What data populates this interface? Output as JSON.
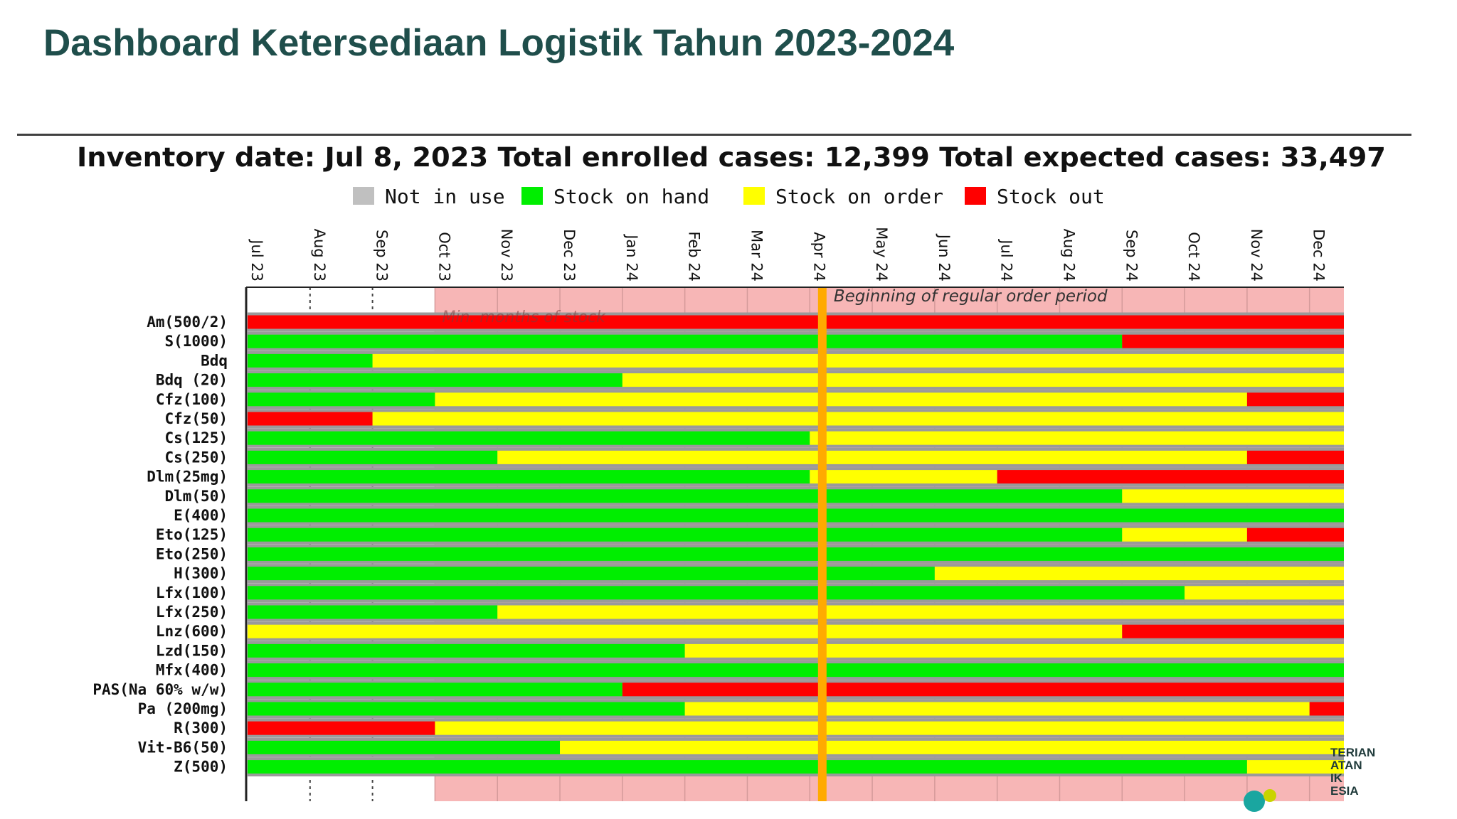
{
  "page": {
    "title": "Dashboard Ketersediaan Logistik Tahun 2023-2024"
  },
  "logo": {
    "text": "TERIAN\nATAN\nIK\nESIA"
  },
  "colors": {
    "not_in_use": "#c0c0c0",
    "stock_on_hand": "#00ee00",
    "stock_on_order": "#ffff00",
    "stock_out": "#ff0000",
    "min_months_region": "#f7b6b6",
    "order_period_marker": "#ffaa00",
    "title": "#1f4e4b"
  },
  "chart_data": {
    "type": "gantt",
    "title": "Inventory date: Jul 8, 2023 Total enrolled cases: 12,399 Total expected cases: 33,497",
    "inventory_date": "Jul 8, 2023",
    "total_enrolled_cases": 12399,
    "total_expected_cases": 33497,
    "legend": [
      {
        "key": "not_in_use",
        "label": "Not in use"
      },
      {
        "key": "stock_on_hand",
        "label": "Stock on hand"
      },
      {
        "key": "stock_on_order",
        "label": "Stock on order"
      },
      {
        "key": "stock_out",
        "label": "Stock out"
      }
    ],
    "legend_position": "top-center",
    "x_ticks": [
      "Jul 23",
      "Aug 23",
      "Sep 23",
      "Oct 23",
      "Nov 23",
      "Dec 23",
      "Jan 24",
      "Feb 24",
      "Mar 24",
      "Apr 24",
      "May 24",
      "Jun 24",
      "Jul 24",
      "Aug 24",
      "Sep 24",
      "Oct 24",
      "Nov 24",
      "Dec 24"
    ],
    "x_range_months": [
      0,
      17.55
    ],
    "annotations": [
      {
        "label": "Min. months of stock",
        "start_month": 3
      },
      {
        "label": "Beginning of regular order period",
        "month": 9.2
      }
    ],
    "series": [
      {
        "label": "Am(500/2)",
        "segments": [
          {
            "status": "stock_out",
            "start": 0,
            "end": 17.55
          }
        ]
      },
      {
        "label": "S(1000)",
        "segments": [
          {
            "status": "stock_on_hand",
            "start": 0,
            "end": 14.0
          },
          {
            "status": "stock_out",
            "start": 14.0,
            "end": 17.55
          }
        ]
      },
      {
        "label": "Bdq",
        "segments": [
          {
            "status": "stock_on_hand",
            "start": 0,
            "end": 2.0
          },
          {
            "status": "stock_on_order",
            "start": 2.0,
            "end": 17.55
          }
        ]
      },
      {
        "label": "Bdq (20)",
        "segments": [
          {
            "status": "stock_on_hand",
            "start": 0,
            "end": 6.0
          },
          {
            "status": "stock_on_order",
            "start": 6.0,
            "end": 17.55
          }
        ]
      },
      {
        "label": "Cfz(100)",
        "segments": [
          {
            "status": "stock_on_hand",
            "start": 0,
            "end": 3.0
          },
          {
            "status": "stock_on_order",
            "start": 3.0,
            "end": 16.0
          },
          {
            "status": "stock_out",
            "start": 16.0,
            "end": 17.55
          }
        ]
      },
      {
        "label": "Cfz(50)",
        "segments": [
          {
            "status": "stock_out",
            "start": 0,
            "end": 2.0
          },
          {
            "status": "stock_on_order",
            "start": 2.0,
            "end": 17.55
          }
        ]
      },
      {
        "label": "Cs(125)",
        "segments": [
          {
            "status": "stock_on_hand",
            "start": 0,
            "end": 9.0
          },
          {
            "status": "stock_on_order",
            "start": 9.0,
            "end": 17.55
          }
        ]
      },
      {
        "label": "Cs(250)",
        "segments": [
          {
            "status": "stock_on_hand",
            "start": 0,
            "end": 4.0
          },
          {
            "status": "stock_on_order",
            "start": 4.0,
            "end": 16.0
          },
          {
            "status": "stock_out",
            "start": 16.0,
            "end": 17.55
          }
        ]
      },
      {
        "label": "Dlm(25mg)",
        "segments": [
          {
            "status": "stock_on_hand",
            "start": 0,
            "end": 9.0
          },
          {
            "status": "stock_on_order",
            "start": 9.0,
            "end": 12.0
          },
          {
            "status": "stock_out",
            "start": 12.0,
            "end": 17.55
          }
        ]
      },
      {
        "label": "Dlm(50)",
        "segments": [
          {
            "status": "stock_on_hand",
            "start": 0,
            "end": 14.0
          },
          {
            "status": "stock_on_order",
            "start": 14.0,
            "end": 17.55
          }
        ]
      },
      {
        "label": "E(400)",
        "segments": [
          {
            "status": "stock_on_hand",
            "start": 0,
            "end": 17.55
          }
        ]
      },
      {
        "label": "Eto(125)",
        "segments": [
          {
            "status": "stock_on_hand",
            "start": 0,
            "end": 14.0
          },
          {
            "status": "stock_on_order",
            "start": 14.0,
            "end": 16.0
          },
          {
            "status": "stock_out",
            "start": 16.0,
            "end": 17.55
          }
        ]
      },
      {
        "label": "Eto(250)",
        "segments": [
          {
            "status": "stock_on_hand",
            "start": 0,
            "end": 17.55
          }
        ]
      },
      {
        "label": "H(300)",
        "segments": [
          {
            "status": "stock_on_hand",
            "start": 0,
            "end": 11.0
          },
          {
            "status": "stock_on_order",
            "start": 11.0,
            "end": 17.55
          }
        ]
      },
      {
        "label": "Lfx(100)",
        "segments": [
          {
            "status": "stock_on_hand",
            "start": 0,
            "end": 15.0
          },
          {
            "status": "stock_on_order",
            "start": 15.0,
            "end": 17.55
          }
        ]
      },
      {
        "label": "Lfx(250)",
        "segments": [
          {
            "status": "stock_on_hand",
            "start": 0,
            "end": 4.0
          },
          {
            "status": "stock_on_order",
            "start": 4.0,
            "end": 17.55
          }
        ]
      },
      {
        "label": "Lnz(600)",
        "segments": [
          {
            "status": "stock_on_order",
            "start": 0,
            "end": 14.0
          },
          {
            "status": "stock_out",
            "start": 14.0,
            "end": 17.55
          }
        ]
      },
      {
        "label": "Lzd(150)",
        "segments": [
          {
            "status": "stock_on_hand",
            "start": 0,
            "end": 7.0
          },
          {
            "status": "stock_on_order",
            "start": 7.0,
            "end": 17.55
          }
        ]
      },
      {
        "label": "Mfx(400)",
        "segments": [
          {
            "status": "stock_on_hand",
            "start": 0,
            "end": 17.55
          }
        ]
      },
      {
        "label": "PAS(Na 60% w/w)",
        "segments": [
          {
            "status": "stock_on_hand",
            "start": 0,
            "end": 6.0
          },
          {
            "status": "stock_out",
            "start": 6.0,
            "end": 17.55
          }
        ]
      },
      {
        "label": "Pa (200mg)",
        "segments": [
          {
            "status": "stock_on_hand",
            "start": 0,
            "end": 7.0
          },
          {
            "status": "stock_on_order",
            "start": 7.0,
            "end": 17.0
          },
          {
            "status": "stock_out",
            "start": 17.0,
            "end": 17.55
          }
        ]
      },
      {
        "label": "R(300)",
        "segments": [
          {
            "status": "stock_out",
            "start": 0,
            "end": 3.0
          },
          {
            "status": "stock_on_order",
            "start": 3.0,
            "end": 17.55
          }
        ]
      },
      {
        "label": "Vit-B6(50)",
        "segments": [
          {
            "status": "stock_on_hand",
            "start": 0,
            "end": 5.0
          },
          {
            "status": "stock_on_order",
            "start": 5.0,
            "end": 17.55
          }
        ]
      },
      {
        "label": "Z(500)",
        "segments": [
          {
            "status": "stock_on_hand",
            "start": 0,
            "end": 16.0
          },
          {
            "status": "stock_on_order",
            "start": 16.0,
            "end": 17.55
          }
        ]
      }
    ]
  }
}
